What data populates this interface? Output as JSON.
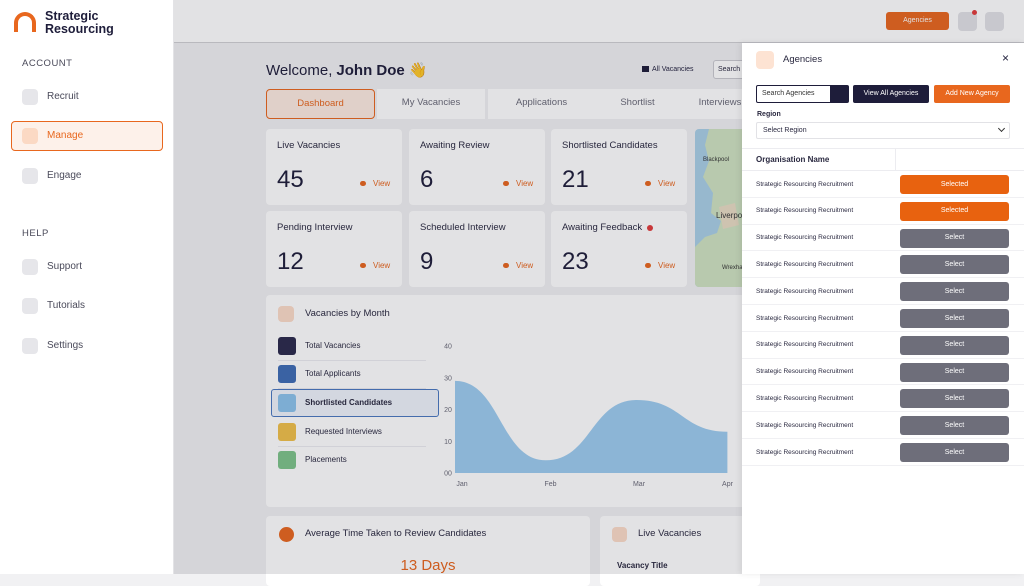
{
  "sidebar": {
    "brand": [
      "Strategic",
      "Resourcing"
    ],
    "sections": [
      {
        "title": "ACCOUNT",
        "items": [
          "Recruit",
          "Manage",
          "Engage"
        ]
      },
      {
        "title": "HELP",
        "items": [
          "Support",
          "Tutorials",
          "Settings"
        ]
      }
    ],
    "active": {
      "section": 0,
      "item": 1
    }
  },
  "topbar": {
    "button": "Agencies"
  },
  "welcome": {
    "greeting": "Welcome,",
    "name": "John Doe",
    "emoji": "👋",
    "filter": "All Vacancies",
    "search": "Search"
  },
  "tabs": {
    "items": [
      "Dashboard",
      "My Vacancies",
      "Applications",
      "Shortlist",
      "Interviews"
    ],
    "active": 0
  },
  "stats": [
    {
      "label": "Live Vacancies",
      "value": "45",
      "link": "View"
    },
    {
      "label": "Awaiting Review",
      "value": "6",
      "link": "View"
    },
    {
      "label": "Shortlisted Candidates",
      "value": "21",
      "link": "View"
    },
    {
      "label": "Pending Interview",
      "value": "12",
      "link": "View"
    },
    {
      "label": "Scheduled Interview",
      "value": "9",
      "link": "View"
    },
    {
      "label": "Awaiting Feedback",
      "value": "23",
      "link": "View",
      "alert": true
    }
  ],
  "map": {
    "labels": [
      "Blackpool",
      "Liverpool",
      "Wrexham"
    ]
  },
  "chart": {
    "type": "area",
    "title": "Vacancies by Month",
    "categories": [
      "Jan",
      "Feb",
      "Mar",
      "Apr"
    ],
    "series": [
      {
        "name": "Total Vacancies",
        "color": "#2b2a4c"
      },
      {
        "name": "Total Applicants",
        "color": "#3f6db5"
      },
      {
        "name": "Shortlisted Candidates",
        "color": "#8cc3ec",
        "values": [
          29,
          4,
          23,
          13
        ]
      },
      {
        "name": "Requested Interviews",
        "color": "#f0c04a"
      },
      {
        "name": "Placements",
        "color": "#7ec48a"
      }
    ],
    "selected": 2,
    "ylim": [
      0,
      40
    ],
    "yticks": [
      {
        "value": 0,
        "label": "00"
      },
      10,
      20,
      30,
      40
    ]
  },
  "bottom": [
    {
      "title": "Average Time Taken to Review Candidates",
      "value": "13 Days"
    },
    {
      "title": "Live Vacancies",
      "column": "Vacancy Title"
    }
  ],
  "panel": {
    "title": "Agencies",
    "search_placeholder": "Search Agencies",
    "view_all": "View All Agencies",
    "add_new": "Add New Agency",
    "region_label": "Region",
    "region_placeholder": "Select Region",
    "column": "Organisation Name",
    "rows": [
      {
        "name": "Strategic Resourcing Recruitment",
        "action": "Selected",
        "selected": true
      },
      {
        "name": "Strategic Resourcing Recruitment",
        "action": "Selected",
        "selected": true
      },
      {
        "name": "Strategic Resourcing Recruitment",
        "action": "Select",
        "selected": false
      },
      {
        "name": "Strategic Resourcing Recruitment",
        "action": "Select",
        "selected": false
      },
      {
        "name": "Strategic Resourcing Recruitment",
        "action": "Select",
        "selected": false
      },
      {
        "name": "Strategic Resourcing Recruitment",
        "action": "Select",
        "selected": false
      },
      {
        "name": "Strategic Resourcing Recruitment",
        "action": "Select",
        "selected": false
      },
      {
        "name": "Strategic Resourcing Recruitment",
        "action": "Select",
        "selected": false
      },
      {
        "name": "Strategic Resourcing Recruitment",
        "action": "Select",
        "selected": false
      },
      {
        "name": "Strategic Resourcing Recruitment",
        "action": "Select",
        "selected": false
      },
      {
        "name": "Strategic Resourcing Recruitment",
        "action": "Select",
        "selected": false
      }
    ]
  }
}
